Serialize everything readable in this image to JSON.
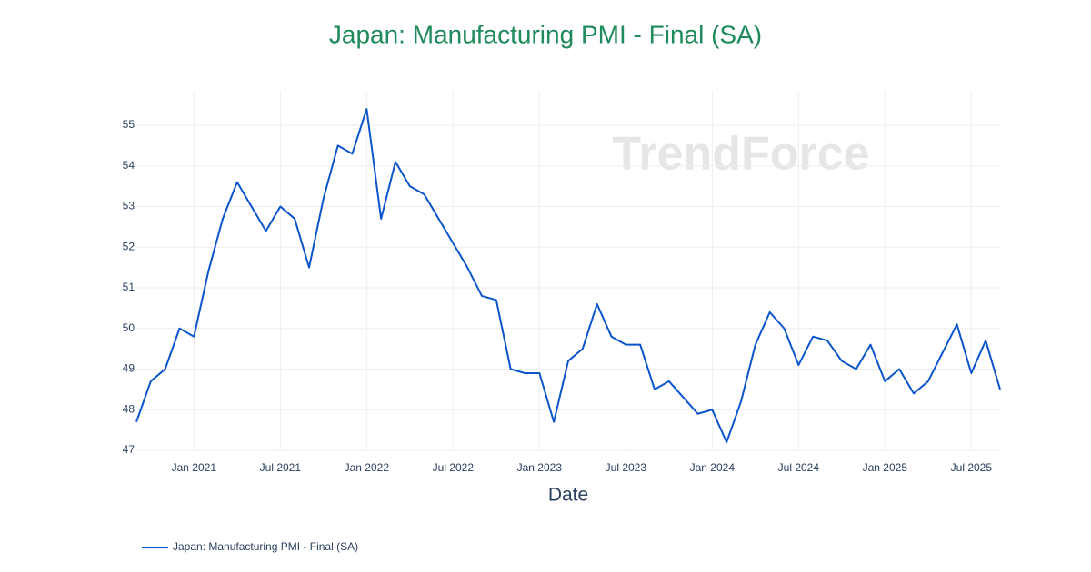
{
  "chart_data": {
    "type": "line",
    "title": "Japan: Manufacturing PMI - Final (SA)",
    "x_label": "Date",
    "watermark": "TrendForce",
    "x": [
      "2020-09",
      "2020-10",
      "2020-11",
      "2020-12",
      "2021-01",
      "2021-02",
      "2021-03",
      "2021-04",
      "2021-05",
      "2021-06",
      "2021-07",
      "2021-08",
      "2021-09",
      "2021-10",
      "2021-11",
      "2021-12",
      "2022-01",
      "2022-02",
      "2022-03",
      "2022-04",
      "2022-05",
      "2022-06",
      "2022-07",
      "2022-08",
      "2022-09",
      "2022-10",
      "2022-11",
      "2022-12",
      "2023-01",
      "2023-02",
      "2023-03",
      "2023-04",
      "2023-05",
      "2023-06",
      "2023-07",
      "2023-08",
      "2023-09",
      "2023-10",
      "2023-11",
      "2023-12",
      "2024-01",
      "2024-02",
      "2024-03",
      "2024-04",
      "2024-05",
      "2024-06",
      "2024-07",
      "2024-08",
      "2024-09",
      "2024-10",
      "2024-11",
      "2024-12",
      "2025-01",
      "2025-02",
      "2025-03",
      "2025-04",
      "2025-05",
      "2025-06",
      "2025-07",
      "2025-08",
      "2025-09"
    ],
    "series": [
      {
        "name": "Japan: Manufacturing PMI - Final (SA)",
        "color": "#0b55cc",
        "values": [
          47.7,
          48.7,
          49.0,
          50.0,
          49.8,
          51.4,
          52.7,
          53.6,
          53.0,
          52.4,
          53.0,
          52.7,
          51.5,
          53.2,
          54.5,
          54.3,
          55.4,
          52.7,
          54.1,
          53.5,
          53.3,
          52.7,
          52.1,
          51.5,
          50.8,
          50.7,
          49.0,
          48.9,
          48.9,
          47.7,
          49.2,
          49.5,
          50.6,
          49.8,
          49.6,
          49.6,
          48.5,
          48.7,
          48.3,
          47.9,
          48.0,
          47.2,
          48.2,
          49.6,
          50.4,
          50.0,
          49.1,
          49.8,
          49.7,
          49.2,
          49.0,
          49.6,
          48.7,
          49.0,
          48.4,
          48.7,
          49.4,
          50.1,
          48.9,
          49.7,
          48.5
        ]
      }
    ],
    "xlim": [
      "2020-09",
      "2025-09"
    ],
    "xticks": [
      {
        "value": "2021-01",
        "label": "Jan 2021"
      },
      {
        "value": "2021-07",
        "label": "Jul 2021"
      },
      {
        "value": "2022-01",
        "label": "Jan 2022"
      },
      {
        "value": "2022-07",
        "label": "Jul 2022"
      },
      {
        "value": "2023-01",
        "label": "Jan 2023"
      },
      {
        "value": "2023-07",
        "label": "Jul 2023"
      },
      {
        "value": "2024-01",
        "label": "Jan 2024"
      },
      {
        "value": "2024-07",
        "label": "Jul 2024"
      },
      {
        "value": "2025-01",
        "label": "Jan 2025"
      },
      {
        "value": "2025-07",
        "label": "Jul 2025"
      }
    ],
    "ylim": [
      47,
      55.85
    ],
    "yticks": [
      47,
      48,
      49,
      50,
      51,
      52,
      53,
      54,
      55
    ],
    "grid": true
  }
}
